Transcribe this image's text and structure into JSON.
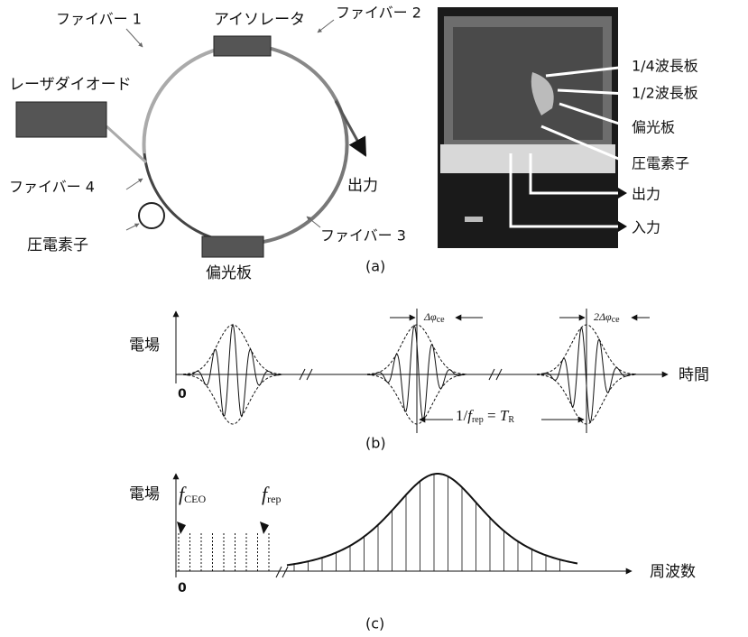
{
  "panel_a": {
    "caption": "(a)",
    "diagram": {
      "fiber1": "ファイバー 1",
      "isolator": "アイソレータ",
      "fiber2": "ファイバー 2",
      "laser_diode": "レーザダイオード",
      "output": "出力",
      "fiber4": "ファイバー 4",
      "fiber3": "ファイバー 3",
      "piezo": "圧電素子",
      "polarizer": "偏光板"
    },
    "photo_labels": [
      "1/4波長板",
      "1/2波長板",
      "偏光板",
      "圧電素子",
      "出力",
      "入力"
    ]
  },
  "panel_b": {
    "caption": "(b)",
    "y_label": "電場",
    "origin": "0",
    "x_label": "時間",
    "phase_slip_1": {
      "symbol": "Δφ",
      "subscript": "ce"
    },
    "phase_slip_2": {
      "symbol": "2Δφ",
      "subscript": "ce"
    },
    "period": [
      "1/",
      "f",
      "rep",
      " = ",
      "T",
      "R"
    ]
  },
  "panel_c": {
    "caption": "(c)",
    "y_label": "電場",
    "origin": "0",
    "x_label": "周波数",
    "f_ceo": {
      "symbol": "f",
      "subscript": "CEO"
    },
    "f_rep": {
      "symbol": "f",
      "subscript": "rep"
    }
  }
}
